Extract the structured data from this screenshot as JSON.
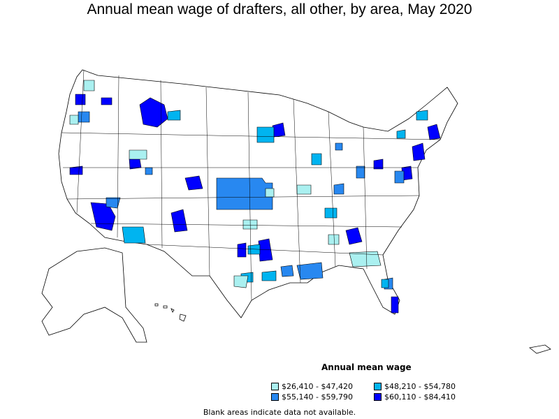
{
  "title": "Annual mean wage of drafters, all other, by area, May 2020",
  "legend": {
    "title": "Annual mean wage",
    "items": [
      {
        "label": "$26,410 - $47,420",
        "color": "#aaf0f0"
      },
      {
        "label": "$48,210 - $54,780",
        "color": "#00b4f0"
      },
      {
        "label": "$55,140 - $59,790",
        "color": "#2888f0"
      },
      {
        "label": "$60,110 - $84,410",
        "color": "#0000ff"
      }
    ]
  },
  "note": "Blank areas indicate data not available."
}
